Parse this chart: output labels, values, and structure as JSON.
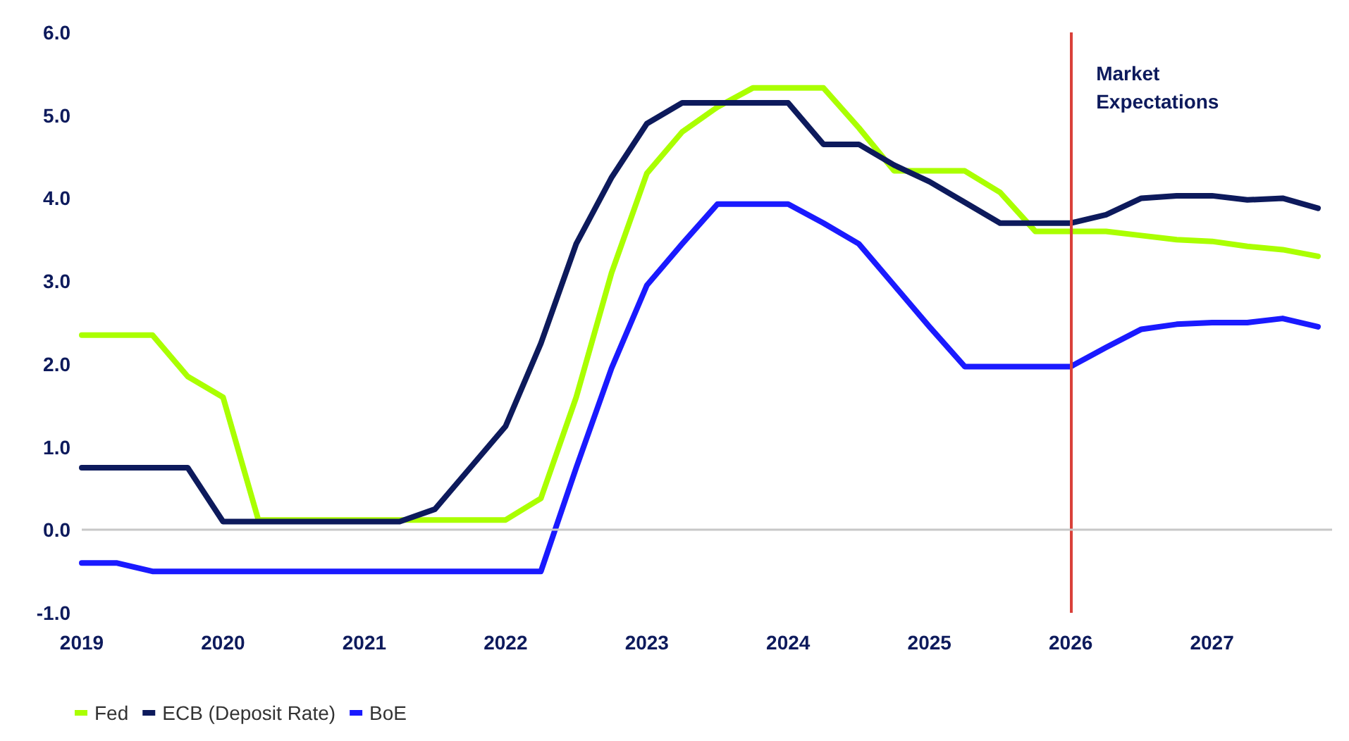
{
  "chart_data": {
    "type": "line",
    "xlim": [
      2019,
      2027.85
    ],
    "xticks": [
      2019,
      2020,
      2021,
      2022,
      2023,
      2024,
      2025,
      2026,
      2027
    ],
    "ylim": [
      -1,
      6
    ],
    "yticks": [
      {
        "value": -1,
        "label": "-1.0"
      },
      {
        "value": 0,
        "label": "0.0"
      },
      {
        "value": 1,
        "label": "1.0"
      },
      {
        "value": 2,
        "label": "2.0"
      },
      {
        "value": 3,
        "label": "3.0"
      },
      {
        "value": 4,
        "label": "4.0"
      },
      {
        "value": 5,
        "label": "5.0"
      },
      {
        "value": 6,
        "label": "6.0"
      }
    ],
    "grid": false,
    "legend": "bottom left",
    "marker": "none",
    "line_style": "solid",
    "x": [
      2019,
      2019.25,
      2019.5,
      2019.75,
      2020,
      2020.25,
      2020.5,
      2020.75,
      2021,
      2021.25,
      2021.5,
      2021.75,
      2022,
      2022.25,
      2022.5,
      2022.75,
      2023,
      2023.25,
      2023.5,
      2023.75,
      2024,
      2024.25,
      2024.5,
      2024.75,
      2025,
      2025.25,
      2025.5,
      2025.75,
      2026,
      2026.25,
      2026.5,
      2026.75,
      2027,
      2027.25,
      2027.5,
      2027.75
    ],
    "series": [
      {
        "name": "Fed",
        "color": "#aaff00",
        "values": [
          2.35,
          2.35,
          2.35,
          1.85,
          1.6,
          0.12,
          0.12,
          0.12,
          0.12,
          0.12,
          0.12,
          0.12,
          0.12,
          0.38,
          1.6,
          3.1,
          4.3,
          4.8,
          5.1,
          5.33,
          5.33,
          5.33,
          4.85,
          4.33,
          4.33,
          4.33,
          4.07,
          3.6,
          3.6,
          3.6,
          3.55,
          3.5,
          3.48,
          3.42,
          3.38,
          3.3
        ]
      },
      {
        "name": "ECB (Deposit Rate)",
        "color": "#0d1a5c",
        "values": [
          0.75,
          0.75,
          0.75,
          0.75,
          0.1,
          0.1,
          0.1,
          0.1,
          0.1,
          0.1,
          0.25,
          0.75,
          1.25,
          2.25,
          3.45,
          4.25,
          4.9,
          5.15,
          5.15,
          5.15,
          5.15,
          4.65,
          4.65,
          4.4,
          4.2,
          3.95,
          3.7,
          3.7,
          3.7,
          3.8,
          4.0,
          4.03,
          4.03,
          3.98,
          4.0,
          3.88
        ]
      },
      {
        "name": "BoE",
        "color": "#1a1aff",
        "values": [
          -0.4,
          -0.4,
          -0.5,
          -0.5,
          -0.5,
          -0.5,
          -0.5,
          -0.5,
          -0.5,
          -0.5,
          -0.5,
          -0.5,
          -0.5,
          -0.5,
          0.75,
          1.95,
          2.95,
          3.45,
          3.93,
          3.93,
          3.93,
          3.7,
          3.45,
          2.95,
          2.45,
          1.97,
          1.97,
          1.97,
          1.97,
          2.2,
          2.42,
          2.48,
          2.5,
          2.5,
          2.55,
          2.45
        ]
      }
    ],
    "ref_lines": [
      {
        "axis": "x",
        "value": 2026,
        "label": "Market Expectations",
        "color": "#d9413a"
      },
      {
        "axis": "y",
        "value": 0,
        "label": null,
        "color": "#c8c8c8"
      }
    ]
  }
}
